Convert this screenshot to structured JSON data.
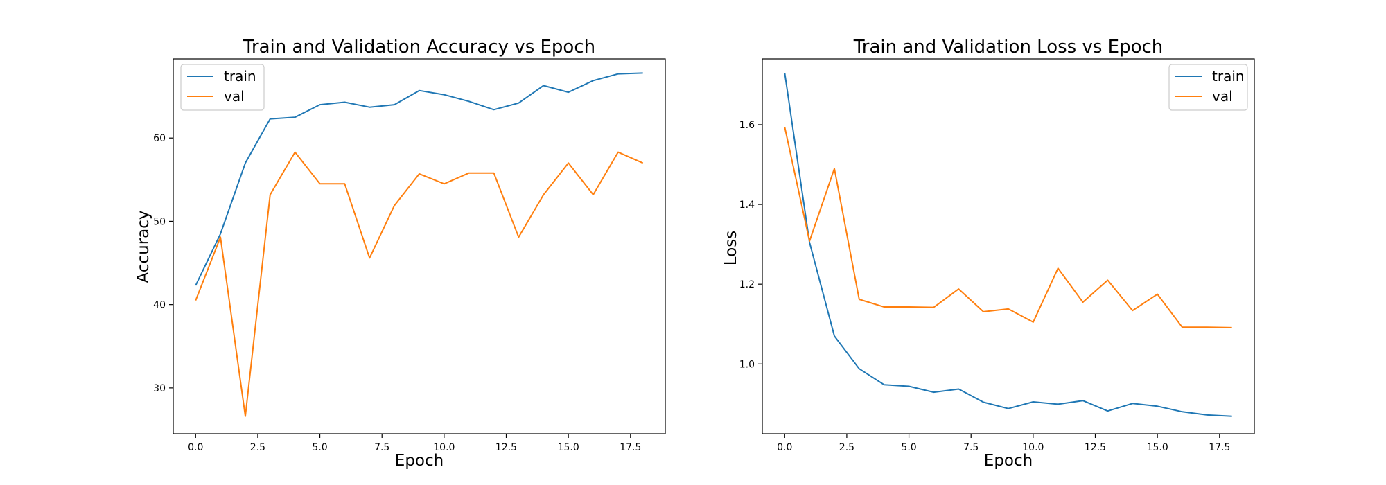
{
  "figure": {
    "background": "#ffffff"
  },
  "colors": {
    "train": "#1f77b4",
    "val": "#ff7f0e",
    "axes": "#000000",
    "legend_border": "#cccccc"
  },
  "chart_data": [
    {
      "type": "line",
      "title": "Train and Validation Accuracy vs Epoch",
      "xlabel": "Epoch",
      "ylabel": "Accuracy",
      "xlim": [
        -0.9,
        18.9
      ],
      "ylim": [
        24.5,
        69.5
      ],
      "xticks": [
        0.0,
        2.5,
        5.0,
        7.5,
        10.0,
        12.5,
        15.0,
        17.5
      ],
      "xtick_labels": [
        "0.0",
        "2.5",
        "5.0",
        "7.5",
        "10.0",
        "12.5",
        "15.0",
        "17.5"
      ],
      "yticks": [
        30,
        40,
        50,
        60
      ],
      "ytick_labels": [
        "30",
        "40",
        "50",
        "60"
      ],
      "grid": false,
      "legend_position": "upper left",
      "x": [
        0,
        1,
        2,
        3,
        4,
        5,
        6,
        7,
        8,
        9,
        10,
        11,
        12,
        13,
        14,
        15,
        16,
        17,
        18
      ],
      "series": [
        {
          "name": "train",
          "color": "#1f77b4",
          "values": [
            42.3,
            48.5,
            57.0,
            62.3,
            62.5,
            64.0,
            64.3,
            63.7,
            64.0,
            65.7,
            65.2,
            64.4,
            63.4,
            64.2,
            66.3,
            65.5,
            66.9,
            67.7,
            67.8
          ]
        },
        {
          "name": "val",
          "color": "#ff7f0e",
          "values": [
            40.5,
            48.1,
            26.6,
            53.2,
            58.3,
            54.5,
            54.5,
            45.6,
            51.9,
            55.7,
            54.5,
            55.8,
            55.8,
            48.1,
            53.2,
            57.0,
            53.2,
            58.3,
            57.0
          ]
        }
      ]
    },
    {
      "type": "line",
      "title": "Train and Validation Loss vs Epoch",
      "xlabel": "Epoch",
      "ylabel": "Loss",
      "xlim": [
        -0.9,
        18.9
      ],
      "ylim": [
        0.825,
        1.765
      ],
      "xticks": [
        0.0,
        2.5,
        5.0,
        7.5,
        10.0,
        12.5,
        15.0,
        17.5
      ],
      "xtick_labels": [
        "0.0",
        "2.5",
        "5.0",
        "7.5",
        "10.0",
        "12.5",
        "15.0",
        "17.5"
      ],
      "yticks": [
        1.0,
        1.2,
        1.4,
        1.6
      ],
      "ytick_labels": [
        "1.0",
        "1.2",
        "1.4",
        "1.6"
      ],
      "grid": false,
      "legend_position": "upper right",
      "x": [
        0,
        1,
        2,
        3,
        4,
        5,
        6,
        7,
        8,
        9,
        10,
        11,
        12,
        13,
        14,
        15,
        16,
        17,
        18
      ],
      "series": [
        {
          "name": "train",
          "color": "#1f77b4",
          "values": [
            1.73,
            1.305,
            1.07,
            0.988,
            0.948,
            0.944,
            0.929,
            0.937,
            0.904,
            0.888,
            0.905,
            0.899,
            0.908,
            0.882,
            0.901,
            0.894,
            0.88,
            0.872,
            0.869
          ]
        },
        {
          "name": "val",
          "color": "#ff7f0e",
          "values": [
            1.594,
            1.308,
            1.49,
            1.162,
            1.143,
            1.143,
            1.142,
            1.188,
            1.131,
            1.138,
            1.105,
            1.24,
            1.155,
            1.21,
            1.134,
            1.175,
            1.092,
            1.092,
            1.091
          ]
        }
      ]
    }
  ]
}
